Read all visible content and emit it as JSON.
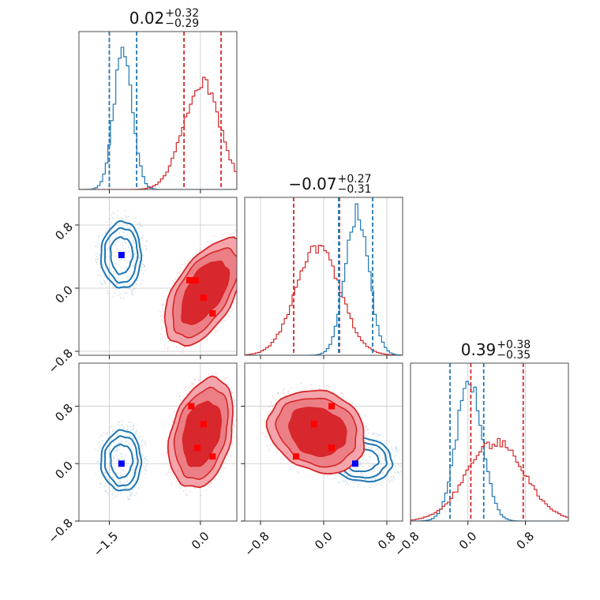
{
  "chart_data": {
    "type": "corner",
    "colors": {
      "blue": "#1f77b4",
      "red": "#d62728",
      "marker_blue": "#0000ff",
      "marker_red": "#ff0000"
    },
    "params": [
      {
        "title": {
          "median": "0.02",
          "plus": "+0.32",
          "minus": "−0.29"
        },
        "range": [
          -2.0,
          0.6
        ]
      },
      {
        "title": {
          "median": "−0.07",
          "plus": "+0.27",
          "minus": "−0.31"
        },
        "range": [
          -1.0,
          1.0
        ]
      },
      {
        "title": {
          "median": "0.39",
          "plus": "+0.38",
          "minus": "−0.35"
        },
        "range": [
          -0.8,
          1.4
        ]
      }
    ],
    "row_ranges": [
      null,
      [
        -0.85,
        1.15
      ],
      [
        -0.8,
        1.4
      ]
    ],
    "x_ticks": [
      [
        {
          "v": -1.5,
          "label": "−1.5"
        },
        {
          "v": 0.0,
          "label": "0.0"
        }
      ],
      [
        {
          "v": -0.8,
          "label": "−0.8"
        },
        {
          "v": 0.0,
          "label": "0.0"
        },
        {
          "v": 0.8,
          "label": "0.8"
        }
      ],
      [
        {
          "v": -0.8,
          "label": "−0.8"
        },
        {
          "v": 0.0,
          "label": "0.0"
        },
        {
          "v": 0.8,
          "label": "0.8"
        }
      ]
    ],
    "y_ticks": [
      [],
      [
        {
          "v": 0.8,
          "label": "0.8"
        },
        {
          "v": 0.0,
          "label": "0.0"
        },
        {
          "v": -0.8,
          "label": "−0.8"
        }
      ],
      [
        {
          "v": 0.8,
          "label": "0.8"
        },
        {
          "v": 0.0,
          "label": "0.0"
        },
        {
          "v": -0.8,
          "label": "−0.8"
        }
      ]
    ],
    "histograms": [
      {
        "series": [
          {
            "color": "blue",
            "mean": -1.27,
            "sd": 0.15,
            "peak": 0.9,
            "quantiles": [
              -1.5,
              -1.05
            ]
          },
          {
            "color": "red",
            "mean": 0.02,
            "sd": 0.3,
            "peak": 0.68,
            "quantiles": [
              -0.27,
              0.34
            ]
          }
        ]
      },
      {
        "series": [
          {
            "color": "red",
            "mean": -0.07,
            "sd": 0.28,
            "peak": 0.68,
            "quantiles": [
              -0.38,
              0.2
            ]
          },
          {
            "color": "blue",
            "mean": 0.42,
            "sd": 0.15,
            "peak": 0.9,
            "quantiles": [
              0.19,
              0.62
            ]
          }
        ]
      },
      {
        "series": [
          {
            "color": "blue",
            "mean": 0.02,
            "sd": 0.18,
            "peak": 0.9,
            "quantiles": [
              -0.25,
              0.22
            ]
          },
          {
            "color": "red",
            "mean": 0.39,
            "sd": 0.4,
            "peak": 0.5,
            "quantiles": [
              0.04,
              0.77
            ]
          }
        ]
      }
    ],
    "pair_panels": [
      {
        "row": 1,
        "col": 0,
        "blobs": [
          {
            "color": "blue",
            "cx": -1.3,
            "cy": 0.42,
            "rx": 0.33,
            "ry": 0.42,
            "angle": 0,
            "filled": false
          },
          {
            "color": "red",
            "cx": 0.07,
            "cy": -0.05,
            "rx": 0.42,
            "ry": 0.66,
            "angle": 0.55,
            "filled": true
          }
        ],
        "markers": [
          {
            "color": "marker_blue",
            "x": -1.3,
            "y": 0.42
          },
          {
            "color": "marker_red",
            "x": -0.18,
            "y": 0.1
          },
          {
            "color": "marker_red",
            "x": -0.08,
            "y": 0.1
          },
          {
            "color": "marker_red",
            "x": 0.05,
            "y": -0.12
          },
          {
            "color": "marker_red",
            "x": 0.2,
            "y": -0.32
          }
        ]
      },
      {
        "row": 2,
        "col": 0,
        "blobs": [
          {
            "color": "blue",
            "cx": -1.3,
            "cy": 0.04,
            "rx": 0.33,
            "ry": 0.42,
            "angle": 0,
            "filled": false
          },
          {
            "color": "red",
            "cx": 0.02,
            "cy": 0.42,
            "rx": 0.43,
            "ry": 0.68,
            "angle": 0.25,
            "filled": true
          }
        ],
        "markers": [
          {
            "color": "marker_blue",
            "x": -1.3,
            "y": 0.0
          },
          {
            "color": "marker_red",
            "x": -0.15,
            "y": 0.8
          },
          {
            "color": "marker_red",
            "x": 0.05,
            "y": 0.55
          },
          {
            "color": "marker_red",
            "x": -0.05,
            "y": 0.22
          },
          {
            "color": "marker_red",
            "x": 0.2,
            "y": 0.1
          }
        ]
      },
      {
        "row": 2,
        "col": 1,
        "blobs": [
          {
            "color": "blue",
            "cx": 0.46,
            "cy": 0.06,
            "rx": 0.42,
            "ry": 0.3,
            "angle": 0.15,
            "filled": false
          },
          {
            "color": "red",
            "cx": -0.08,
            "cy": 0.45,
            "rx": 0.55,
            "ry": 0.48,
            "angle": 0.4,
            "filled": true
          }
        ],
        "markers": [
          {
            "color": "marker_blue",
            "x": 0.4,
            "y": 0.0
          },
          {
            "color": "marker_red",
            "x": 0.1,
            "y": 0.8
          },
          {
            "color": "marker_red",
            "x": -0.12,
            "y": 0.55
          },
          {
            "color": "marker_red",
            "x": 0.1,
            "y": 0.22
          },
          {
            "color": "marker_red",
            "x": -0.35,
            "y": 0.1
          }
        ]
      }
    ]
  }
}
